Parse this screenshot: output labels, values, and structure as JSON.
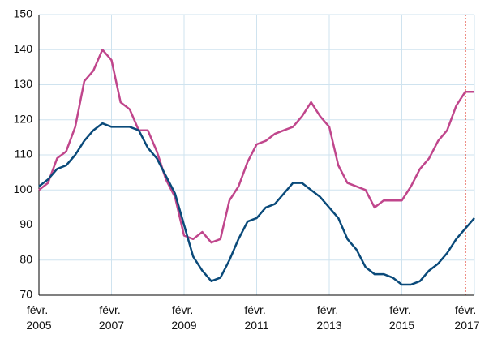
{
  "chart_data": {
    "type": "line",
    "x": [
      "2005-02",
      "2005-05",
      "2005-08",
      "2005-11",
      "2006-02",
      "2006-05",
      "2006-08",
      "2006-11",
      "2007-02",
      "2007-05",
      "2007-08",
      "2007-11",
      "2008-02",
      "2008-05",
      "2008-08",
      "2008-11",
      "2009-02",
      "2009-05",
      "2009-08",
      "2009-11",
      "2010-02",
      "2010-05",
      "2010-08",
      "2010-11",
      "2011-02",
      "2011-05",
      "2011-08",
      "2011-11",
      "2012-02",
      "2012-05",
      "2012-08",
      "2012-11",
      "2013-02",
      "2013-05",
      "2013-08",
      "2013-11",
      "2014-02",
      "2014-05",
      "2014-08",
      "2014-11",
      "2015-02",
      "2015-05",
      "2015-08",
      "2015-11",
      "2016-02",
      "2016-05",
      "2016-08",
      "2016-11",
      "2017-02"
    ],
    "series": [
      {
        "color": "#c0468c",
        "values": [
          100,
          102,
          109,
          111,
          118,
          131,
          134,
          140,
          137,
          125,
          123,
          117,
          117,
          111,
          103,
          98,
          87,
          86,
          88,
          85,
          86,
          97,
          101,
          108,
          113,
          114,
          116,
          117,
          118,
          121,
          125,
          121,
          118,
          107,
          102,
          101,
          100,
          95,
          97,
          97,
          97,
          101,
          106,
          109,
          114,
          117,
          124,
          128,
          128
        ]
      },
      {
        "color": "#0a4a7a",
        "values": [
          101,
          103,
          106,
          107,
          110,
          114,
          117,
          119,
          118,
          118,
          118,
          117,
          112,
          109,
          104,
          99,
          90,
          81,
          77,
          74,
          75,
          80,
          86,
          91,
          92,
          95,
          96,
          99,
          102,
          102,
          100,
          98,
          95,
          92,
          86,
          83,
          78,
          76,
          76,
          75,
          73,
          73,
          74,
          77,
          79,
          82,
          86,
          89,
          92
        ]
      }
    ],
    "xlim": [
      "2005-02",
      "2017-02"
    ],
    "xticks": [
      {
        "value": "2005-02",
        "label": "févr. 2005"
      },
      {
        "value": "2007-02",
        "label": "févr. 2007"
      },
      {
        "value": "2009-02",
        "label": "févr. 2009"
      },
      {
        "value": "2011-02",
        "label": "févr. 2011"
      },
      {
        "value": "2013-02",
        "label": "févr. 2013"
      },
      {
        "value": "2015-02",
        "label": "févr. 2015"
      },
      {
        "value": "2017-02",
        "label": "févr. 2017"
      }
    ],
    "ylim": [
      70,
      150
    ],
    "yticks": [
      70,
      80,
      90,
      100,
      110,
      120,
      130,
      140,
      150
    ],
    "grid": true,
    "vline": {
      "x": "2016-11",
      "color": "#e03a2a"
    }
  }
}
